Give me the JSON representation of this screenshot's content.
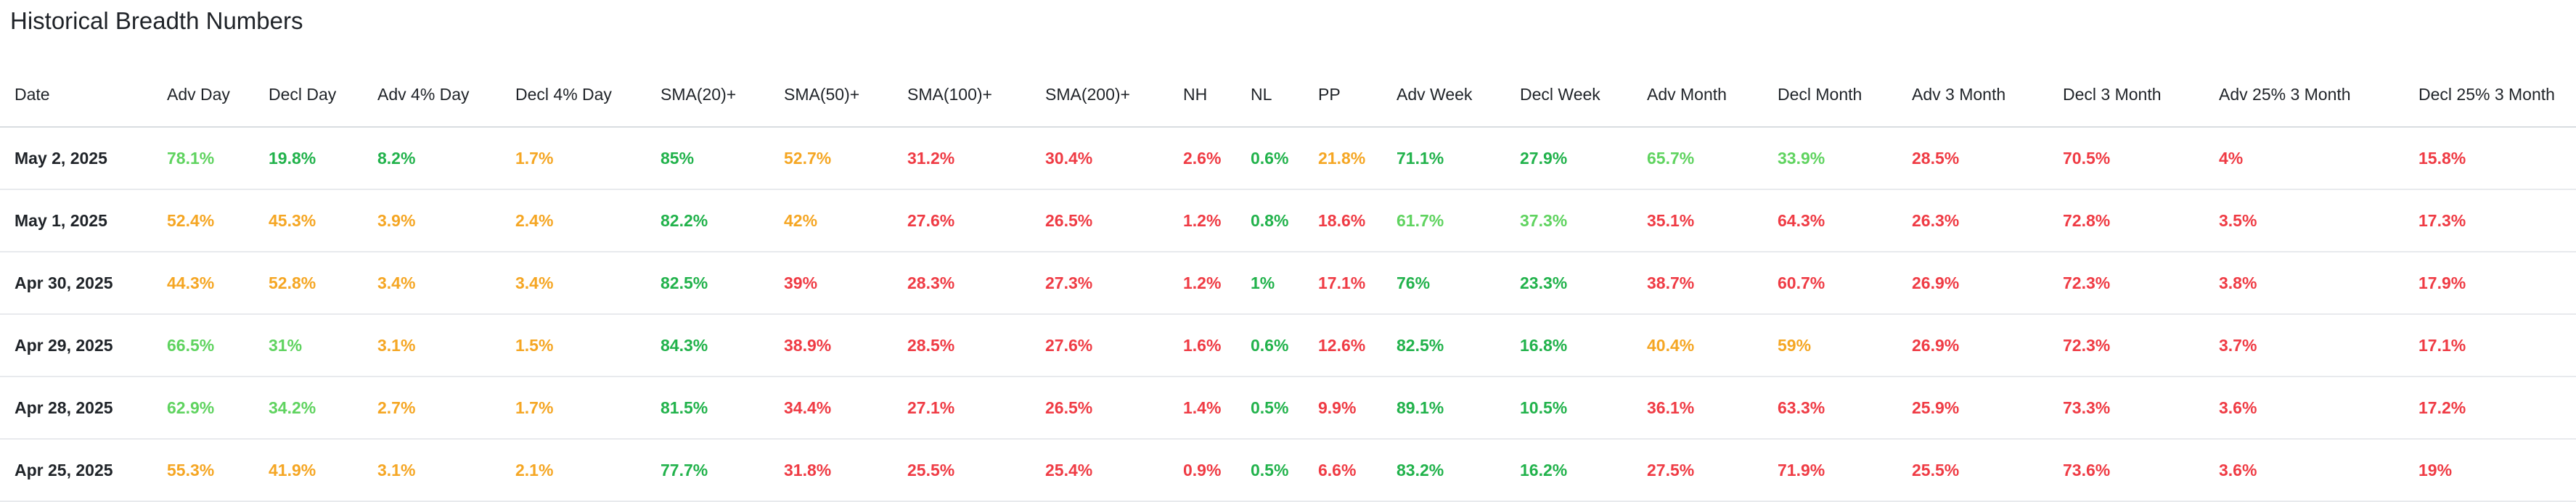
{
  "title": "Historical Breadth Numbers",
  "colors": {
    "green": "#21b24b",
    "lightgreen": "#5fd35f",
    "orange": "#f5a623",
    "red": "#ef3b44"
  },
  "columns": [
    "Date",
    "Adv Day",
    "Decl Day",
    "Adv 4% Day",
    "Decl 4% Day",
    "SMA(20)+",
    "SMA(50)+",
    "SMA(100)+",
    "SMA(200)+",
    "NH",
    "NL",
    "PP",
    "Adv Week",
    "Decl Week",
    "Adv Month",
    "Decl Month",
    "Adv 3 Month",
    "Decl 3 Month",
    "Adv 25% 3 Month",
    "Decl 25% 3 Month"
  ],
  "rows": [
    {
      "date": "May 2, 2025",
      "cells": [
        {
          "v": "78.1%",
          "c": "lightgreen"
        },
        {
          "v": "19.8%",
          "c": "green"
        },
        {
          "v": "8.2%",
          "c": "green"
        },
        {
          "v": "1.7%",
          "c": "orange"
        },
        {
          "v": "85%",
          "c": "green"
        },
        {
          "v": "52.7%",
          "c": "orange"
        },
        {
          "v": "31.2%",
          "c": "red"
        },
        {
          "v": "30.4%",
          "c": "red"
        },
        {
          "v": "2.6%",
          "c": "red"
        },
        {
          "v": "0.6%",
          "c": "green"
        },
        {
          "v": "21.8%",
          "c": "orange"
        },
        {
          "v": "71.1%",
          "c": "green"
        },
        {
          "v": "27.9%",
          "c": "green"
        },
        {
          "v": "65.7%",
          "c": "lightgreen"
        },
        {
          "v": "33.9%",
          "c": "lightgreen"
        },
        {
          "v": "28.5%",
          "c": "red"
        },
        {
          "v": "70.5%",
          "c": "red"
        },
        {
          "v": "4%",
          "c": "red"
        },
        {
          "v": "15.8%",
          "c": "red"
        }
      ]
    },
    {
      "date": "May 1, 2025",
      "cells": [
        {
          "v": "52.4%",
          "c": "orange"
        },
        {
          "v": "45.3%",
          "c": "orange"
        },
        {
          "v": "3.9%",
          "c": "orange"
        },
        {
          "v": "2.4%",
          "c": "orange"
        },
        {
          "v": "82.2%",
          "c": "green"
        },
        {
          "v": "42%",
          "c": "orange"
        },
        {
          "v": "27.6%",
          "c": "red"
        },
        {
          "v": "26.5%",
          "c": "red"
        },
        {
          "v": "1.2%",
          "c": "red"
        },
        {
          "v": "0.8%",
          "c": "green"
        },
        {
          "v": "18.6%",
          "c": "red"
        },
        {
          "v": "61.7%",
          "c": "lightgreen"
        },
        {
          "v": "37.3%",
          "c": "lightgreen"
        },
        {
          "v": "35.1%",
          "c": "red"
        },
        {
          "v": "64.3%",
          "c": "red"
        },
        {
          "v": "26.3%",
          "c": "red"
        },
        {
          "v": "72.8%",
          "c": "red"
        },
        {
          "v": "3.5%",
          "c": "red"
        },
        {
          "v": "17.3%",
          "c": "red"
        }
      ]
    },
    {
      "date": "Apr 30, 2025",
      "cells": [
        {
          "v": "44.3%",
          "c": "orange"
        },
        {
          "v": "52.8%",
          "c": "orange"
        },
        {
          "v": "3.4%",
          "c": "orange"
        },
        {
          "v": "3.4%",
          "c": "orange"
        },
        {
          "v": "82.5%",
          "c": "green"
        },
        {
          "v": "39%",
          "c": "red"
        },
        {
          "v": "28.3%",
          "c": "red"
        },
        {
          "v": "27.3%",
          "c": "red"
        },
        {
          "v": "1.2%",
          "c": "red"
        },
        {
          "v": "1%",
          "c": "green"
        },
        {
          "v": "17.1%",
          "c": "red"
        },
        {
          "v": "76%",
          "c": "green"
        },
        {
          "v": "23.3%",
          "c": "green"
        },
        {
          "v": "38.7%",
          "c": "red"
        },
        {
          "v": "60.7%",
          "c": "red"
        },
        {
          "v": "26.9%",
          "c": "red"
        },
        {
          "v": "72.3%",
          "c": "red"
        },
        {
          "v": "3.8%",
          "c": "red"
        },
        {
          "v": "17.9%",
          "c": "red"
        }
      ]
    },
    {
      "date": "Apr 29, 2025",
      "cells": [
        {
          "v": "66.5%",
          "c": "lightgreen"
        },
        {
          "v": "31%",
          "c": "lightgreen"
        },
        {
          "v": "3.1%",
          "c": "orange"
        },
        {
          "v": "1.5%",
          "c": "orange"
        },
        {
          "v": "84.3%",
          "c": "green"
        },
        {
          "v": "38.9%",
          "c": "red"
        },
        {
          "v": "28.5%",
          "c": "red"
        },
        {
          "v": "27.6%",
          "c": "red"
        },
        {
          "v": "1.6%",
          "c": "red"
        },
        {
          "v": "0.6%",
          "c": "green"
        },
        {
          "v": "12.6%",
          "c": "red"
        },
        {
          "v": "82.5%",
          "c": "green"
        },
        {
          "v": "16.8%",
          "c": "green"
        },
        {
          "v": "40.4%",
          "c": "orange"
        },
        {
          "v": "59%",
          "c": "orange"
        },
        {
          "v": "26.9%",
          "c": "red"
        },
        {
          "v": "72.3%",
          "c": "red"
        },
        {
          "v": "3.7%",
          "c": "red"
        },
        {
          "v": "17.1%",
          "c": "red"
        }
      ]
    },
    {
      "date": "Apr 28, 2025",
      "cells": [
        {
          "v": "62.9%",
          "c": "lightgreen"
        },
        {
          "v": "34.2%",
          "c": "lightgreen"
        },
        {
          "v": "2.7%",
          "c": "orange"
        },
        {
          "v": "1.7%",
          "c": "orange"
        },
        {
          "v": "81.5%",
          "c": "green"
        },
        {
          "v": "34.4%",
          "c": "red"
        },
        {
          "v": "27.1%",
          "c": "red"
        },
        {
          "v": "26.5%",
          "c": "red"
        },
        {
          "v": "1.4%",
          "c": "red"
        },
        {
          "v": "0.5%",
          "c": "green"
        },
        {
          "v": "9.9%",
          "c": "red"
        },
        {
          "v": "89.1%",
          "c": "green"
        },
        {
          "v": "10.5%",
          "c": "green"
        },
        {
          "v": "36.1%",
          "c": "red"
        },
        {
          "v": "63.3%",
          "c": "red"
        },
        {
          "v": "25.9%",
          "c": "red"
        },
        {
          "v": "73.3%",
          "c": "red"
        },
        {
          "v": "3.6%",
          "c": "red"
        },
        {
          "v": "17.2%",
          "c": "red"
        }
      ]
    },
    {
      "date": "Apr 25, 2025",
      "cells": [
        {
          "v": "55.3%",
          "c": "orange"
        },
        {
          "v": "41.9%",
          "c": "orange"
        },
        {
          "v": "3.1%",
          "c": "orange"
        },
        {
          "v": "2.1%",
          "c": "orange"
        },
        {
          "v": "77.7%",
          "c": "green"
        },
        {
          "v": "31.8%",
          "c": "red"
        },
        {
          "v": "25.5%",
          "c": "red"
        },
        {
          "v": "25.4%",
          "c": "red"
        },
        {
          "v": "0.9%",
          "c": "red"
        },
        {
          "v": "0.5%",
          "c": "green"
        },
        {
          "v": "6.6%",
          "c": "red"
        },
        {
          "v": "83.2%",
          "c": "green"
        },
        {
          "v": "16.2%",
          "c": "green"
        },
        {
          "v": "27.5%",
          "c": "red"
        },
        {
          "v": "71.9%",
          "c": "red"
        },
        {
          "v": "25.5%",
          "c": "red"
        },
        {
          "v": "73.6%",
          "c": "red"
        },
        {
          "v": "3.6%",
          "c": "red"
        },
        {
          "v": "19%",
          "c": "red"
        }
      ]
    }
  ]
}
